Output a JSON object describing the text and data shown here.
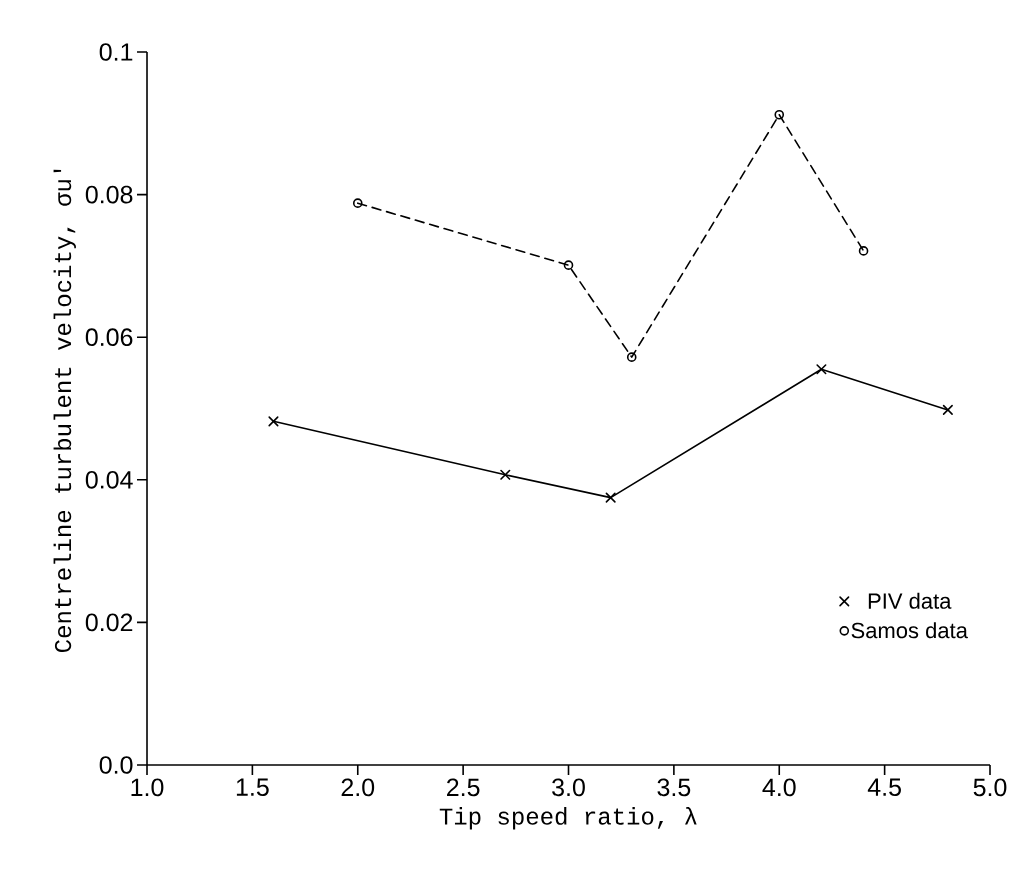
{
  "chart_data": {
    "type": "line",
    "xlabel": "Tip speed ratio, λ",
    "ylabel": "Centreline turbulent velocity, σu′",
    "xlim": [
      1.0,
      5.0
    ],
    "xticks": [
      {
        "value": 1.0,
        "label": "1.0"
      },
      {
        "value": 1.5,
        "label": "1.5"
      },
      {
        "value": 2.0,
        "label": "2.0"
      },
      {
        "value": 2.5,
        "label": "2.5"
      },
      {
        "value": 3.0,
        "label": "3.0"
      },
      {
        "value": 3.5,
        "label": "3.5"
      },
      {
        "value": 4.0,
        "label": "4.0"
      },
      {
        "value": 4.5,
        "label": "4.5"
      },
      {
        "value": 5.0,
        "label": "5.0"
      }
    ],
    "ylim": [
      0,
      0.1
    ],
    "yticks": [
      {
        "value": 0,
        "label": "0.0"
      },
      0.02,
      0.04,
      0.06,
      0.08,
      0.1
    ],
    "legend": "bottom right",
    "grid": false,
    "series": [
      {
        "name": "PIV data",
        "color": "#000000",
        "marker": "cross",
        "line_style": "solid",
        "x": [
          1.6,
          2.7,
          3.2,
          4.2,
          4.8
        ],
        "values": [
          0.0482,
          0.0407,
          0.0375,
          0.0555,
          0.0498
        ]
      },
      {
        "name": "Samos data",
        "color": "#000000",
        "marker": "circle",
        "line_style": "dashed",
        "x": [
          2.0,
          3.0,
          3.3,
          4.0,
          4.4
        ],
        "values": [
          0.0788,
          0.0701,
          0.0572,
          0.0912,
          0.0721
        ]
      }
    ]
  }
}
